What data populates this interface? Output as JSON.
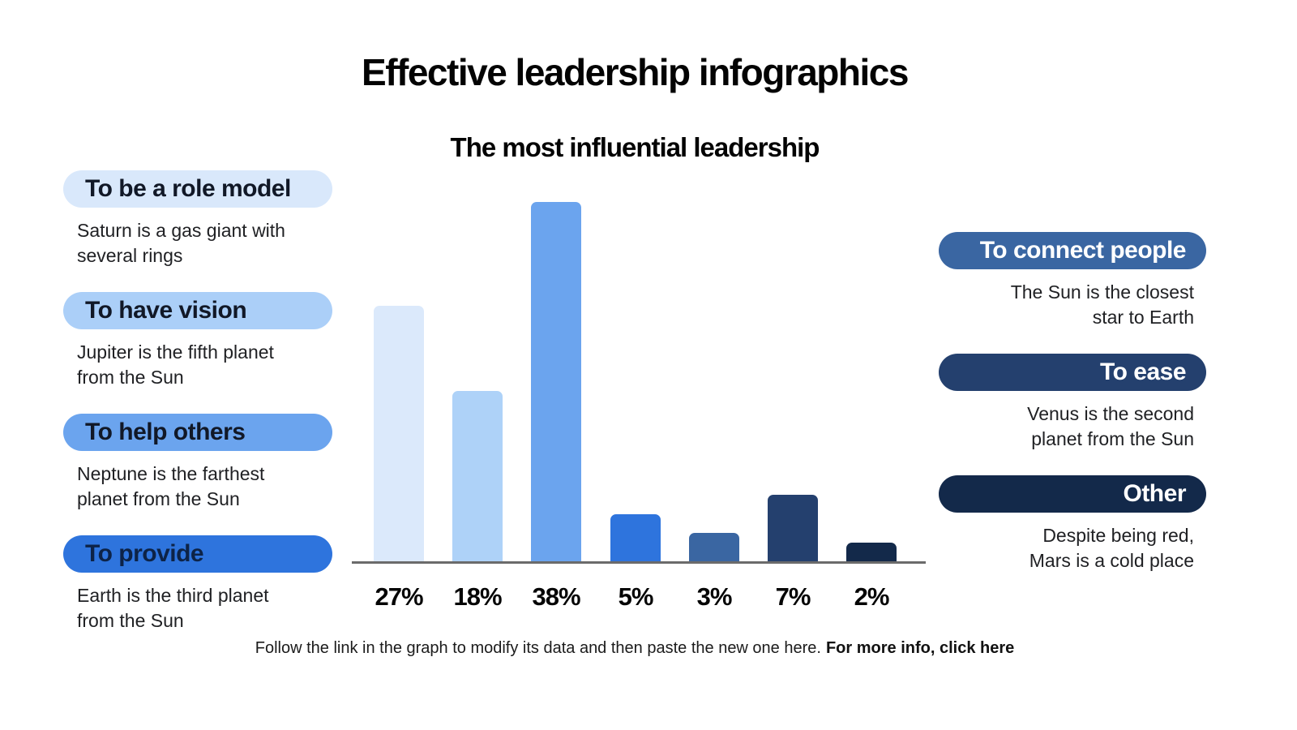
{
  "title": "Effective leadership infographics",
  "categories": [
    {
      "label": "To be a role model",
      "description": "Saturn is a gas giant with\nseveral rings",
      "pill_color": "#d9e8fb",
      "label_color": "#111827",
      "side": "left"
    },
    {
      "label": "To have vision",
      "description": "Jupiter is the fifth planet\nfrom the Sun",
      "pill_color": "#abcff8",
      "label_color": "#111827",
      "side": "left"
    },
    {
      "label": "To help others",
      "description": "Neptune is the farthest\nplanet from the Sun",
      "pill_color": "#6ba4ee",
      "label_color": "#111827",
      "side": "left"
    },
    {
      "label": "To provide",
      "description": "Earth is the third planet\nfrom the Sun",
      "pill_color": "#2e74dd",
      "label_color": "#0d2347",
      "side": "left"
    },
    {
      "label": "To connect people",
      "description": "The Sun is the closest\nstar to Earth",
      "pill_color": "#3a66a2",
      "label_color": "#ffffff",
      "side": "right"
    },
    {
      "label": "To ease",
      "description": "Venus is the second\nplanet from the Sun",
      "pill_color": "#24406e",
      "label_color": "#ffffff",
      "side": "right"
    },
    {
      "label": "Other",
      "description": "Despite being red,\nMars is a cold place",
      "pill_color": "#13294a",
      "label_color": "#ffffff",
      "side": "right"
    }
  ],
  "chart_data": {
    "type": "bar",
    "title": "The most influential leadership",
    "categories": [
      "To be a role model",
      "To have vision",
      "To help others",
      "To provide",
      "To connect people",
      "To ease",
      "Other"
    ],
    "values": [
      27,
      18,
      38,
      5,
      3,
      7,
      2
    ],
    "value_labels": [
      "27%",
      "18%",
      "38%",
      "5%",
      "3%",
      "7%",
      "2%"
    ],
    "colors": [
      "#dbe9fb",
      "#aed2f8",
      "#6ba4ee",
      "#2e74dd",
      "#3a66a2",
      "#24406e",
      "#13294a"
    ],
    "xlabel": "",
    "ylabel": "",
    "ylim": [
      0,
      38
    ],
    "grid": false,
    "legend": false,
    "axis_color": "#6b6b6b"
  },
  "footer": {
    "text": "Follow the link in the graph to modify its data and then paste the new one here.",
    "link_text": "For more info, click here"
  }
}
